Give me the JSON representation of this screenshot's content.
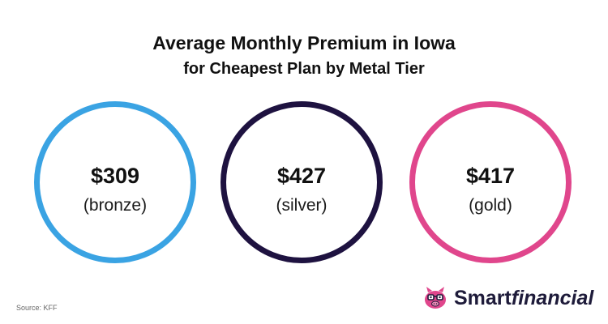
{
  "chart_data": {
    "type": "table",
    "title": "Average Monthly Premium in Iowa",
    "subtitle": "for Cheapest Plan by Metal Tier",
    "categories": [
      "(bronze)",
      "(silver)",
      "(gold)"
    ],
    "values": [
      309,
      427,
      417
    ],
    "value_labels": [
      "$309",
      "$427",
      "$417"
    ],
    "colors": [
      "#3aa3e3",
      "#1e1240",
      "#e0468c"
    ]
  },
  "source": "Source: KFF",
  "logo": {
    "icon": "piggy-bank-with-glasses-icon",
    "brand_bold": "Smart",
    "brand_italic": "financial",
    "color": "#1e1b3a",
    "icon_color": "#e0468c"
  }
}
